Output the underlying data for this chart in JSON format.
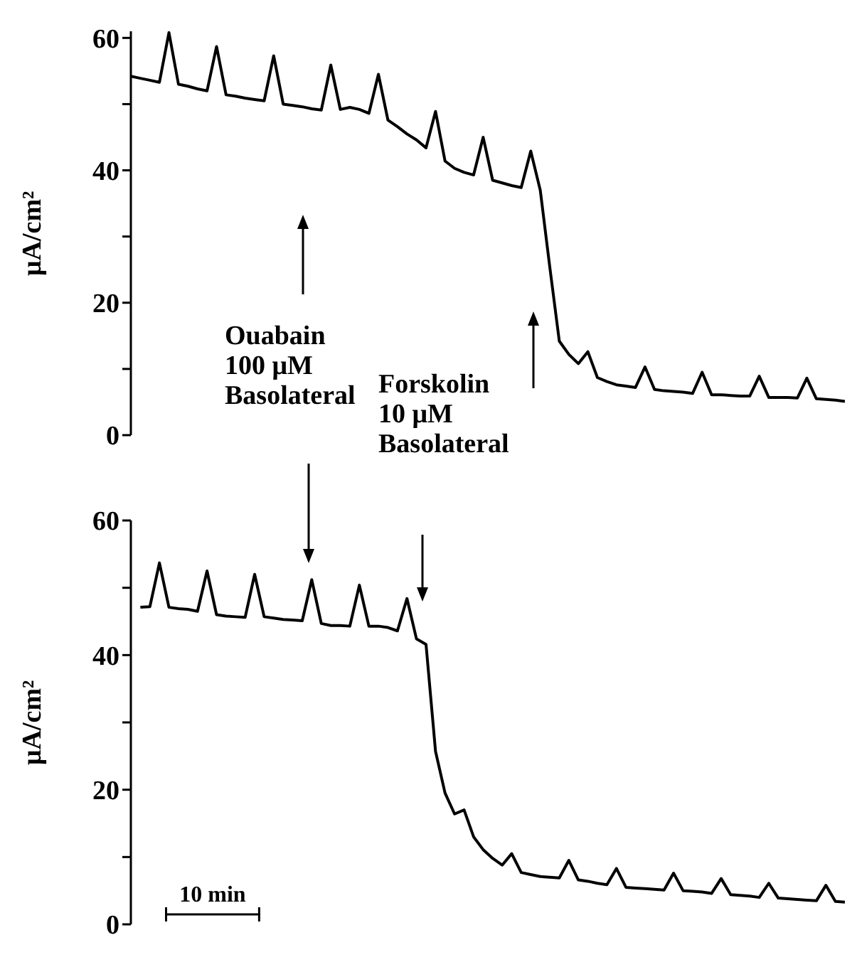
{
  "chart_data": [
    {
      "type": "line",
      "ylabel": "μA/cm²",
      "ylim": [
        0,
        61
      ],
      "yticks": [
        0,
        {
          "value": 10,
          "label": null
        },
        20,
        {
          "value": 30,
          "label": null
        },
        40,
        {
          "value": 50,
          "label": null
        },
        60
      ],
      "tick_labels": "y",
      "grid": false,
      "categories": [
        null,
        null,
        null,
        null,
        null,
        null,
        null,
        null,
        null,
        null,
        null,
        null,
        null,
        null,
        null,
        null,
        null,
        null,
        null,
        null,
        null,
        null,
        null,
        null,
        null,
        null,
        null,
        null,
        null,
        null,
        null,
        null,
        null,
        null,
        null,
        null,
        null,
        null,
        null,
        null,
        null,
        null,
        null,
        null,
        null,
        null,
        null,
        null,
        null,
        null,
        null,
        null,
        null,
        null,
        null,
        null,
        null,
        null,
        null,
        null,
        null,
        null,
        null,
        null,
        null,
        null,
        null,
        null,
        null,
        null,
        null,
        null,
        null,
        null,
        null,
        null
      ],
      "series": [
        {
          "color": "#000000",
          "values": [
            54.2,
            53.9,
            53.6,
            53.3,
            60.8,
            53.0,
            52.7,
            52.3,
            52.0,
            58.7,
            51.4,
            51.2,
            50.9,
            50.7,
            50.5,
            57.3,
            50.0,
            49.8,
            49.6,
            49.3,
            49.1,
            55.9,
            49.2,
            49.5,
            49.2,
            48.6,
            54.5,
            47.6,
            46.6,
            45.5,
            44.6,
            43.4,
            48.9,
            41.4,
            40.3,
            39.7,
            39.3,
            45.0,
            38.5,
            38.1,
            37.7,
            37.4,
            42.9,
            37.0,
            25.4,
            14.2,
            12.2,
            10.8,
            12.6,
            8.7,
            8.1,
            7.6,
            7.4,
            7.2,
            10.3,
            6.9,
            6.7,
            6.6,
            6.5,
            6.3,
            9.5,
            6.1,
            6.1,
            6.0,
            5.9,
            5.9,
            8.9,
            5.7,
            5.7,
            5.7,
            5.6,
            8.6,
            5.5,
            5.4,
            5.3,
            5.1
          ]
        }
      ],
      "annotations": [
        "Ouabain\n100 μM\nBasolateral"
      ]
    },
    {
      "type": "line",
      "ylabel": "μA/cm²",
      "ylim": [
        0,
        60
      ],
      "yticks": [
        0,
        {
          "value": 10,
          "label": null
        },
        20,
        {
          "value": 30,
          "label": null
        },
        40,
        {
          "value": 50,
          "label": null
        },
        60
      ],
      "tick_labels": "y",
      "grid": false,
      "categories": [
        null,
        null,
        null,
        null,
        null,
        null,
        null,
        null,
        null,
        null,
        null,
        null,
        null,
        null,
        null,
        null,
        null,
        null,
        null,
        null,
        null,
        null,
        null,
        null,
        null,
        null,
        null,
        null,
        null,
        null,
        null,
        null,
        null,
        null,
        null,
        null,
        null,
        null,
        null,
        null,
        null,
        null,
        null,
        null,
        null,
        null,
        null,
        null,
        null,
        null,
        null,
        null,
        null,
        null,
        null,
        null,
        null,
        null,
        null,
        null,
        null,
        null,
        null,
        null,
        null,
        null,
        null,
        null,
        null,
        null,
        null,
        null,
        null,
        null,
        null,
        null
      ],
      "series": [
        {
          "color": "#000000",
          "values": [
            null,
            47.1,
            47.2,
            53.7,
            47.1,
            46.9,
            46.8,
            46.5,
            52.5,
            46.0,
            45.8,
            45.7,
            45.6,
            52.0,
            45.7,
            45.5,
            45.3,
            45.2,
            45.1,
            51.2,
            44.7,
            44.4,
            44.4,
            44.3,
            50.4,
            44.3,
            44.3,
            44.1,
            43.6,
            48.4,
            42.4,
            41.6,
            25.7,
            19.5,
            16.4,
            17.0,
            13.0,
            11.1,
            9.8,
            8.8,
            10.5,
            7.7,
            7.4,
            7.1,
            7.0,
            6.9,
            9.5,
            6.6,
            6.4,
            6.1,
            5.9,
            8.3,
            5.5,
            5.4,
            5.3,
            5.2,
            5.1,
            7.6,
            5.0,
            4.9,
            4.8,
            4.6,
            6.8,
            4.4,
            4.3,
            4.2,
            4.0,
            6.1,
            3.9,
            3.8,
            3.7,
            3.6,
            3.5,
            5.8,
            3.4,
            3.3
          ]
        }
      ],
      "annotations": [
        "Forskolin\n10 μM\nBasolateral",
        "10 min"
      ]
    }
  ]
}
